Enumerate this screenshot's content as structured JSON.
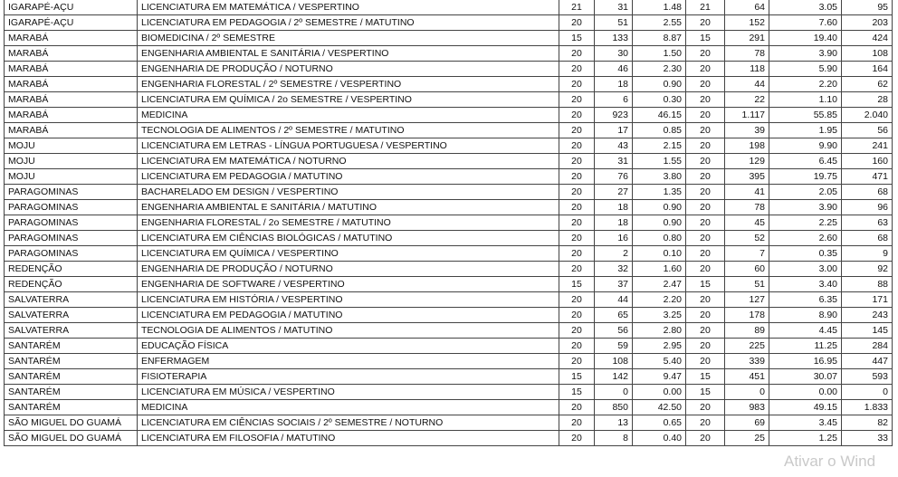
{
  "rows": [
    [
      "IGARAPÉ-AÇU",
      "LICENCIATURA EM MATEMÁTICA / VESPERTINO",
      "21",
      "31",
      "1.48",
      "21",
      "64",
      "3.05",
      "95"
    ],
    [
      "IGARAPÉ-AÇU",
      "LICENCIATURA EM PEDAGOGIA / 2º SEMESTRE / MATUTINO",
      "20",
      "51",
      "2.55",
      "20",
      "152",
      "7.60",
      "203"
    ],
    [
      "MARABÁ",
      "BIOMEDICINA / 2º SEMESTRE",
      "15",
      "133",
      "8.87",
      "15",
      "291",
      "19.40",
      "424"
    ],
    [
      "MARABÁ",
      "ENGENHARIA AMBIENTAL E SANITÁRIA / VESPERTINO",
      "20",
      "30",
      "1.50",
      "20",
      "78",
      "3.90",
      "108"
    ],
    [
      "MARABÁ",
      "ENGENHARIA DE PRODUÇÃO / NOTURNO",
      "20",
      "46",
      "2.30",
      "20",
      "118",
      "5.90",
      "164"
    ],
    [
      "MARABÁ",
      "ENGENHARIA FLORESTAL / 2º SEMESTRE / VESPERTINO",
      "20",
      "18",
      "0.90",
      "20",
      "44",
      "2.20",
      "62"
    ],
    [
      "MARABÁ",
      "LICENCIATURA EM QUÍMICA / 2o SEMESTRE / VESPERTINO",
      "20",
      "6",
      "0.30",
      "20",
      "22",
      "1.10",
      "28"
    ],
    [
      "MARABÁ",
      "MEDICINA",
      "20",
      "923",
      "46.15",
      "20",
      "1.117",
      "55.85",
      "2.040"
    ],
    [
      "MARABÁ",
      "TECNOLOGIA DE ALIMENTOS / 2º SEMESTRE / MATUTINO",
      "20",
      "17",
      "0.85",
      "20",
      "39",
      "1.95",
      "56"
    ],
    [
      "MOJU",
      "LICENCIATURA EM LETRAS - LÍNGUA PORTUGUESA / VESPERTINO",
      "20",
      "43",
      "2.15",
      "20",
      "198",
      "9.90",
      "241"
    ],
    [
      "MOJU",
      "LICENCIATURA EM MATEMÁTICA / NOTURNO",
      "20",
      "31",
      "1.55",
      "20",
      "129",
      "6.45",
      "160"
    ],
    [
      "MOJU",
      "LICENCIATURA EM PEDAGOGIA / MATUTINO",
      "20",
      "76",
      "3.80",
      "20",
      "395",
      "19.75",
      "471"
    ],
    [
      "PARAGOMINAS",
      "BACHARELADO EM DESIGN / VESPERTINO",
      "20",
      "27",
      "1.35",
      "20",
      "41",
      "2.05",
      "68"
    ],
    [
      "PARAGOMINAS",
      "ENGENHARIA AMBIENTAL E SANITÁRIA / MATUTINO",
      "20",
      "18",
      "0.90",
      "20",
      "78",
      "3.90",
      "96"
    ],
    [
      "PARAGOMINAS",
      "ENGENHARIA FLORESTAL / 2o SEMESTRE / MATUTINO",
      "20",
      "18",
      "0.90",
      "20",
      "45",
      "2.25",
      "63"
    ],
    [
      "PARAGOMINAS",
      "LICENCIATURA EM CIÊNCIAS BIOLÓGICAS / MATUTINO",
      "20",
      "16",
      "0.80",
      "20",
      "52",
      "2.60",
      "68"
    ],
    [
      "PARAGOMINAS",
      "LICENCIATURA EM QUÍMICA / VESPERTINO",
      "20",
      "2",
      "0.10",
      "20",
      "7",
      "0.35",
      "9"
    ],
    [
      "REDENÇÃO",
      "ENGENHARIA DE PRODUÇÃO / NOTURNO",
      "20",
      "32",
      "1.60",
      "20",
      "60",
      "3.00",
      "92"
    ],
    [
      "REDENÇÃO",
      "ENGENHARIA DE SOFTWARE / VESPERTINO",
      "15",
      "37",
      "2.47",
      "15",
      "51",
      "3.40",
      "88"
    ],
    [
      "SALVATERRA",
      "LICENCIATURA EM HISTÓRIA / VESPERTINO",
      "20",
      "44",
      "2.20",
      "20",
      "127",
      "6.35",
      "171"
    ],
    [
      "SALVATERRA",
      "LICENCIATURA EM PEDAGOGIA / MATUTINO",
      "20",
      "65",
      "3.25",
      "20",
      "178",
      "8.90",
      "243"
    ],
    [
      "SALVATERRA",
      "TECNOLOGIA DE ALIMENTOS / MATUTINO",
      "20",
      "56",
      "2.80",
      "20",
      "89",
      "4.45",
      "145"
    ],
    [
      "SANTARÉM",
      "EDUCAÇÃO FÍSICA",
      "20",
      "59",
      "2.95",
      "20",
      "225",
      "11.25",
      "284"
    ],
    [
      "SANTARÉM",
      "ENFERMAGEM",
      "20",
      "108",
      "5.40",
      "20",
      "339",
      "16.95",
      "447"
    ],
    [
      "SANTARÉM",
      "FISIOTERAPIA",
      "15",
      "142",
      "9.47",
      "15",
      "451",
      "30.07",
      "593"
    ],
    [
      "SANTARÉM",
      "LICENCIATURA EM MÚSICA / VESPERTINO",
      "15",
      "0",
      "0.00",
      "15",
      "0",
      "0.00",
      "0"
    ],
    [
      "SANTARÉM",
      "MEDICINA",
      "20",
      "850",
      "42.50",
      "20",
      "983",
      "49.15",
      "1.833"
    ],
    [
      "SÃO MIGUEL DO GUAMÁ",
      "LICENCIATURA EM CIÊNCIAS SOCIAIS / 2º SEMESTRE / NOTURNO",
      "20",
      "13",
      "0.65",
      "20",
      "69",
      "3.45",
      "82"
    ],
    [
      "SÃO MIGUEL DO GUAMÁ",
      "LICENCIATURA EM FILOSOFIA / MATUTINO",
      "20",
      "8",
      "0.40",
      "20",
      "25",
      "1.25",
      "33"
    ]
  ],
  "watermark": "Ativar o Wind"
}
